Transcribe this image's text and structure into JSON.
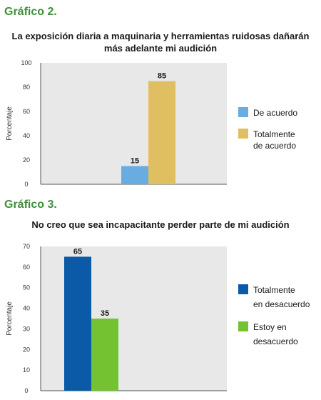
{
  "figures": [
    {
      "label": "Gráfico 2."
    },
    {
      "label": "Gráfico 3."
    }
  ],
  "chart_data": [
    {
      "type": "bar",
      "title_lines": [
        "La exposición diaria a maquinaria y herramientas ruidosas dañarán",
        "más adelante mi audición"
      ],
      "ylabel": "Porcentaje",
      "ylim": [
        0,
        100
      ],
      "yticks": [
        0,
        20,
        40,
        60,
        80,
        100
      ],
      "plot_background": "#e8e8e8",
      "legend_position": "right",
      "series": [
        {
          "name_lines": [
            "De acuerdo"
          ],
          "value": 15,
          "color": "#6aace0"
        },
        {
          "name_lines": [
            "Totalmente",
            "de acuerdo"
          ],
          "value": 85,
          "color": "#e0bf63"
        }
      ]
    },
    {
      "type": "bar",
      "title_lines": [
        "No creo que sea incapacitante perder parte de mi audición"
      ],
      "ylabel": "Porcentaje",
      "ylim": [
        0,
        70
      ],
      "yticks": [
        0,
        10,
        20,
        30,
        40,
        50,
        60,
        70
      ],
      "plot_background": "#e8e8e8",
      "legend_position": "right",
      "series": [
        {
          "name_lines": [
            "Totalmente",
            "en desacuerdo"
          ],
          "value": 65,
          "color": "#0b5aa8"
        },
        {
          "name_lines": [
            "Estoy en",
            "desacuerdo"
          ],
          "value": 35,
          "color": "#74c232"
        }
      ]
    }
  ]
}
